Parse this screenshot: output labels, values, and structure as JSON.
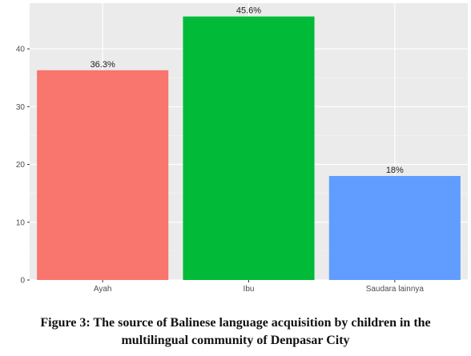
{
  "chart_data": {
    "type": "bar",
    "categories": [
      "Ayah",
      "Ibu",
      "Saudara lainnya"
    ],
    "values": [
      36.3,
      45.6,
      18
    ],
    "data_labels": [
      "36.3%",
      "45.6%",
      "18%"
    ],
    "colors": [
      "#f8766d",
      "#00ba38",
      "#619cff"
    ],
    "y_ticks": [
      0,
      10,
      20,
      30,
      40
    ],
    "ylim": [
      0,
      47.9
    ],
    "grid": true,
    "legend": "none",
    "panel_background": "#ebebeb"
  },
  "caption": {
    "line1": "Figure 3: The source of Balinese language acquisition by children in the",
    "line2": "multilingual community of Denpasar City"
  }
}
